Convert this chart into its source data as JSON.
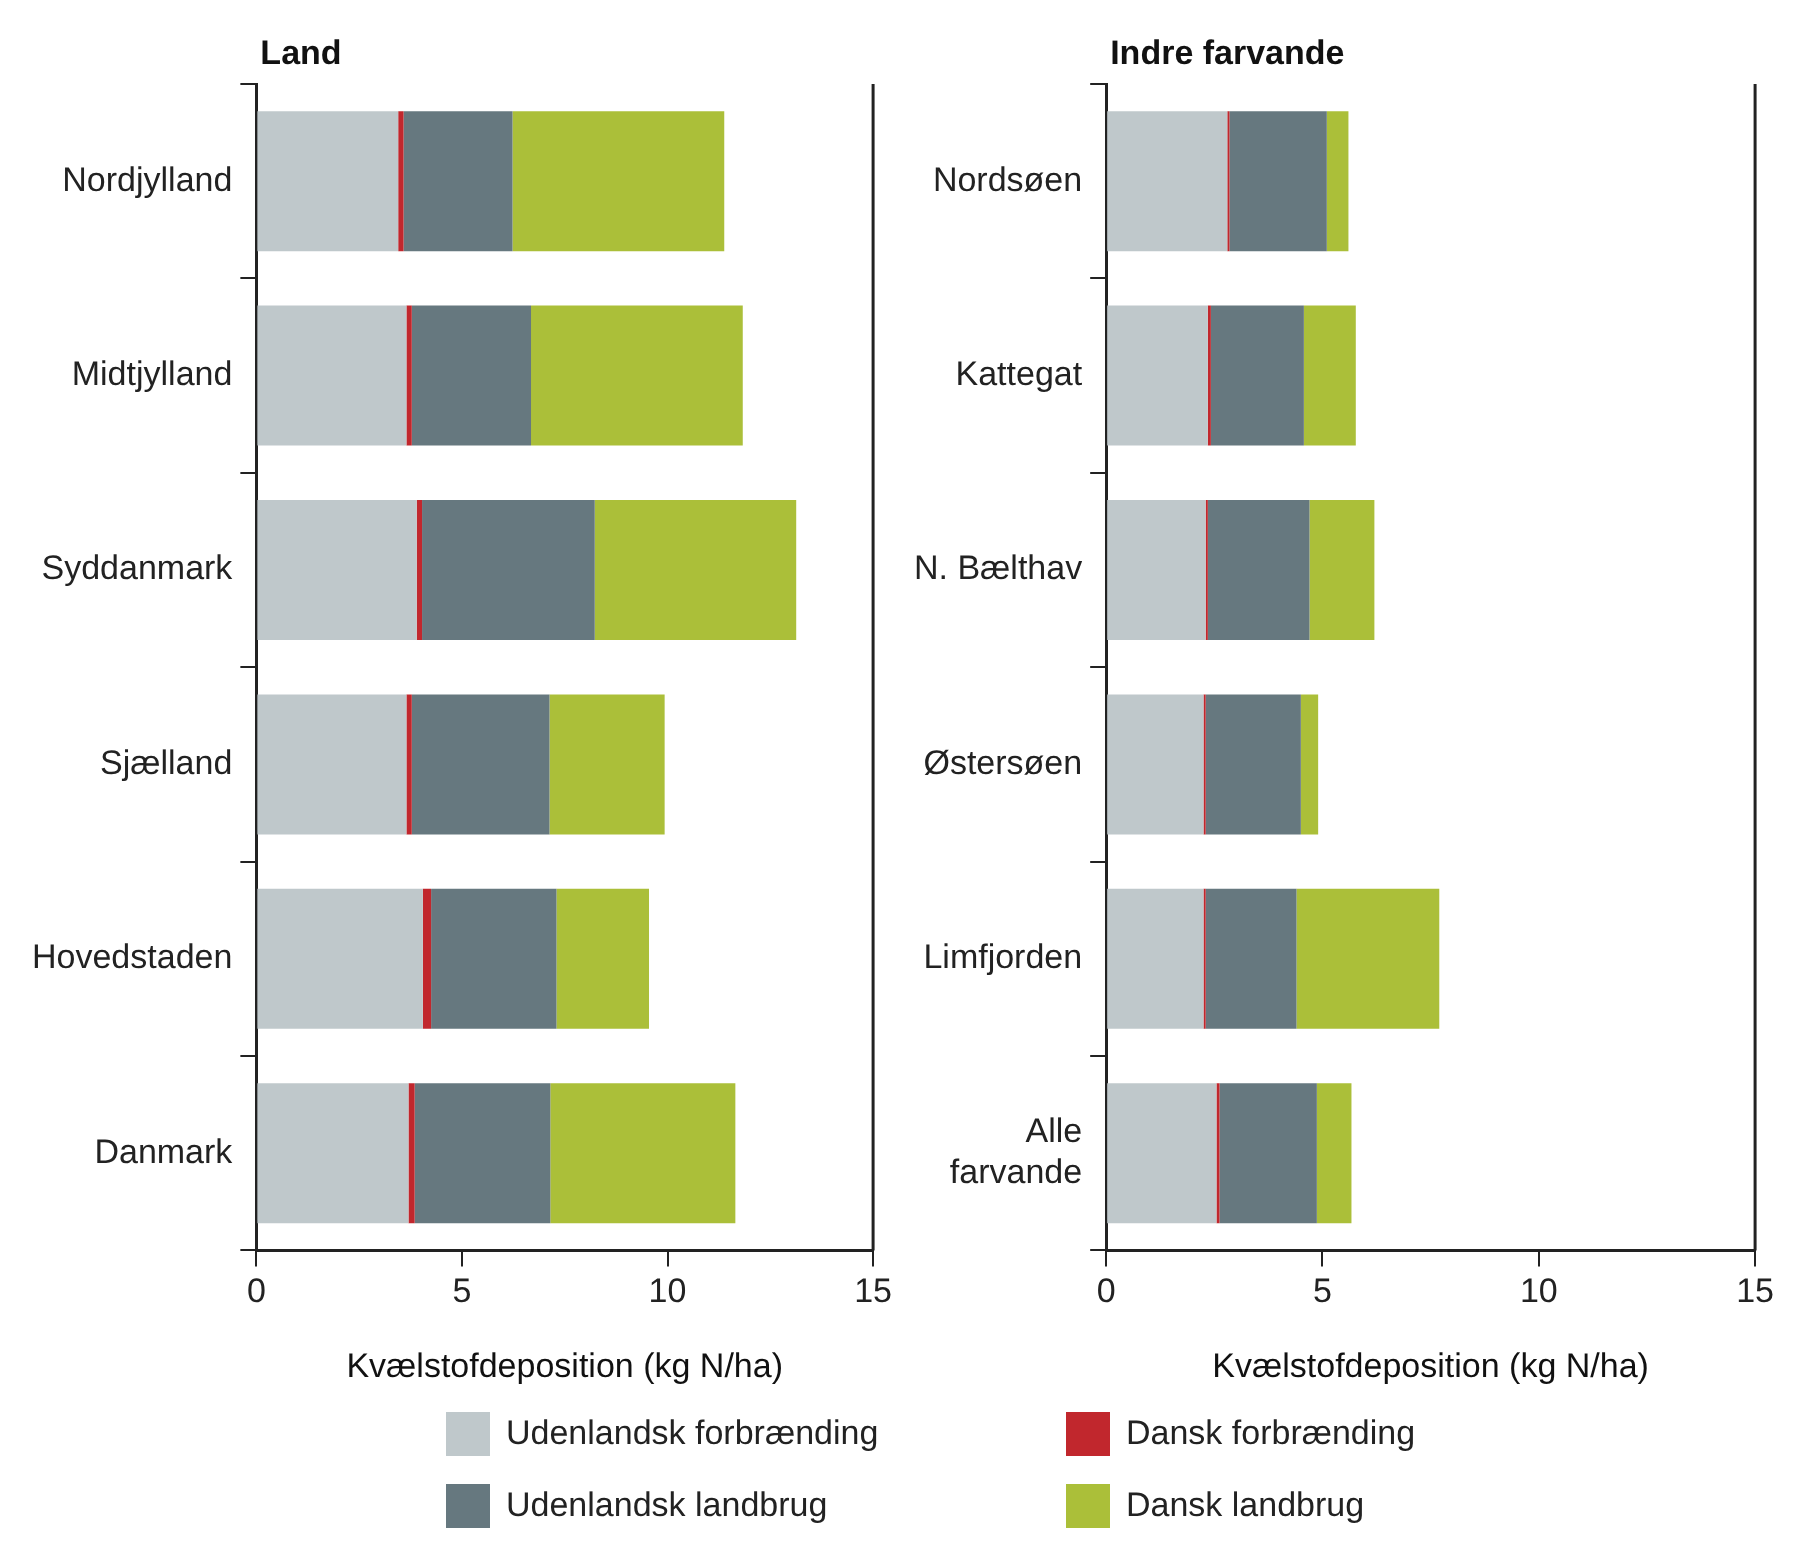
{
  "chart_data": [
    {
      "type": "bar",
      "title": "Land",
      "xlabel": "Kvælstofdeposition (kg N/ha)",
      "orientation": "horizontal",
      "stacked": true,
      "grid": false,
      "legend": "bottom",
      "categories": [
        "Nordjylland",
        "Midtjylland",
        "Syddanmark",
        "Sjælland",
        "Hovedstaden",
        "Danmark"
      ],
      "series": [
        {
          "name": "Udenlandsk forbrænding",
          "color": "#bfc8cb",
          "values": [
            3.45,
            3.65,
            3.9,
            3.65,
            4.05,
            3.7
          ]
        },
        {
          "name": "Dansk forbrænding",
          "color": "#c1272d",
          "values": [
            0.13,
            0.13,
            0.13,
            0.13,
            0.2,
            0.15
          ]
        },
        {
          "name": "Udenlandsk landbrug",
          "color": "#66787f",
          "values": [
            2.65,
            2.9,
            4.2,
            3.35,
            3.05,
            3.3
          ]
        },
        {
          "name": "Dansk landbrug",
          "color": "#abbf39",
          "values": [
            5.15,
            5.15,
            4.9,
            2.8,
            2.25,
            4.5
          ]
        }
      ],
      "xlim": [
        0,
        15
      ],
      "xticks": [
        0,
        5,
        10,
        15
      ]
    },
    {
      "type": "bar",
      "title": "Indre farvande",
      "xlabel": "Kvælstofdeposition (kg N/ha)",
      "orientation": "horizontal",
      "stacked": true,
      "grid": false,
      "categories": [
        "Nordsøen",
        "Kattegat",
        "N. Bælthav",
        "Østersøen",
        "Limfjorden",
        "Alle farvande"
      ],
      "series": [
        {
          "color": "#bfc8cb",
          "values": [
            2.8,
            2.35,
            2.3,
            2.25,
            2.25,
            2.55
          ]
        },
        {
          "color": "#c1272d",
          "values": [
            0.05,
            0.07,
            0.05,
            0.05,
            0.05,
            0.07
          ]
        },
        {
          "color": "#66787f",
          "values": [
            2.25,
            2.15,
            2.35,
            2.2,
            2.1,
            2.25
          ]
        },
        {
          "color": "#abbf39",
          "values": [
            0.5,
            1.2,
            1.5,
            0.4,
            3.3,
            0.8
          ]
        }
      ],
      "xlim": [
        0,
        15
      ],
      "xticks": [
        0,
        5,
        10,
        15
      ]
    }
  ]
}
